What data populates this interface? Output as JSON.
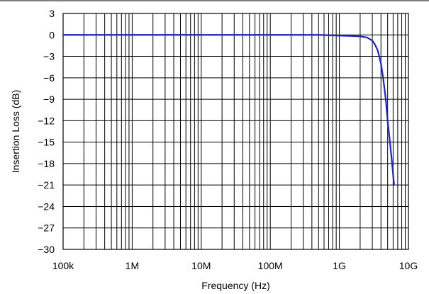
{
  "chart_data": {
    "type": "line",
    "title": "",
    "xlabel": "Frequency (Hz)",
    "ylabel": "Insertion Loss (dB)",
    "x_scale": "log",
    "xlim": [
      100000,
      10000000000
    ],
    "ylim": [
      -30,
      3
    ],
    "x_ticks": [
      {
        "value": 100000,
        "label": "100k"
      },
      {
        "value": 1000000,
        "label": "1M"
      },
      {
        "value": 10000000,
        "label": "10M"
      },
      {
        "value": 100000000,
        "label": "100M"
      },
      {
        "value": 1000000000,
        "label": "1G"
      },
      {
        "value": 10000000000,
        "label": "10G"
      }
    ],
    "y_ticks": [
      {
        "value": 3,
        "label": "3"
      },
      {
        "value": 0,
        "label": "0"
      },
      {
        "value": -3,
        "label": "−3"
      },
      {
        "value": -6,
        "label": "−6"
      },
      {
        "value": -9,
        "label": "−9"
      },
      {
        "value": -12,
        "label": "−12"
      },
      {
        "value": -15,
        "label": "−15"
      },
      {
        "value": -18,
        "label": "−18"
      },
      {
        "value": -21,
        "label": "−21"
      },
      {
        "value": -24,
        "label": "−24"
      },
      {
        "value": -27,
        "label": "−27"
      },
      {
        "value": -30,
        "label": "−30"
      }
    ],
    "grid": true,
    "line_color": "#1f1fd6",
    "series": [
      {
        "x": [
          100000,
          1000000,
          10000000,
          100000000,
          500000000,
          1000000000,
          1500000000,
          2000000000,
          2500000000,
          3000000000,
          3300000000,
          3600000000,
          4000000000,
          4300000000,
          4700000000,
          5000000000,
          5400000000,
          5800000000,
          6200000000
        ],
        "y": [
          0,
          0,
          0,
          0,
          0,
          -0.1,
          -0.15,
          -0.2,
          -0.35,
          -0.8,
          -1.4,
          -2.2,
          -4,
          -6,
          -9,
          -12,
          -15,
          -18,
          -21
        ]
      }
    ]
  }
}
